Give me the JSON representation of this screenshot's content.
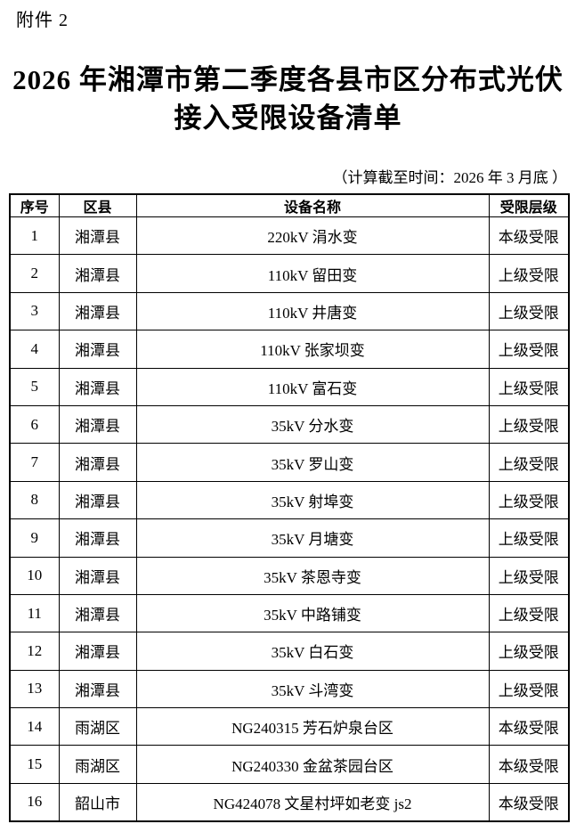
{
  "page": {
    "attachment_label": "附件 2",
    "title_line1": "2026 年湘潭市第二季度各县市区分布式光伏",
    "title_line2": "接入受限设备清单",
    "subtitle": "（计算截至时间：2026 年 3 月底 ）"
  },
  "table": {
    "headers": [
      "序号",
      "区县",
      "设备名称",
      "受限层级"
    ],
    "rows": [
      [
        "1",
        "湘潭县",
        "220kV 涓水变",
        "本级受限"
      ],
      [
        "2",
        "湘潭县",
        "110kV 留田变",
        "上级受限"
      ],
      [
        "3",
        "湘潭县",
        "110kV 井唐变",
        "上级受限"
      ],
      [
        "4",
        "湘潭县",
        "110kV 张家坝变",
        "上级受限"
      ],
      [
        "5",
        "湘潭县",
        "110kV 富石变",
        "上级受限"
      ],
      [
        "6",
        "湘潭县",
        "35kV 分水变",
        "上级受限"
      ],
      [
        "7",
        "湘潭县",
        "35kV 罗山变",
        "上级受限"
      ],
      [
        "8",
        "湘潭县",
        "35kV 射埠变",
        "上级受限"
      ],
      [
        "9",
        "湘潭县",
        "35kV 月塘变",
        "上级受限"
      ],
      [
        "10",
        "湘潭县",
        "35kV 茶恩寺变",
        "上级受限"
      ],
      [
        "11",
        "湘潭县",
        "35kV 中路铺变",
        "上级受限"
      ],
      [
        "12",
        "湘潭县",
        "35kV 白石变",
        "上级受限"
      ],
      [
        "13",
        "湘潭县",
        "35kV 斗湾变",
        "上级受限"
      ],
      [
        "14",
        "雨湖区",
        "NG240315 芳石炉泉台区",
        "本级受限"
      ],
      [
        "15",
        "雨湖区",
        "NG240330 金盆茶园台区",
        "本级受限"
      ],
      [
        "16",
        "韶山市",
        "NG424078 文星村坪如老变 js2",
        "本级受限"
      ]
    ]
  },
  "colors": {
    "text": "#000000",
    "background": "#ffffff",
    "border": "#000000"
  }
}
